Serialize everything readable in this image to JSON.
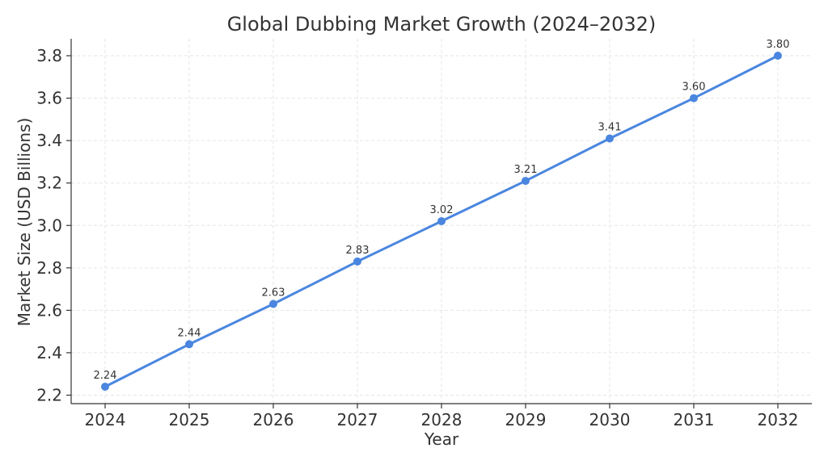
{
  "chart_data": {
    "type": "line",
    "title": "Global Dubbing Market Growth (2024–2032)",
    "xlabel": "Year",
    "ylabel": "Market Size (USD Billions)",
    "x": [
      "2024",
      "2025",
      "2026",
      "2027",
      "2028",
      "2029",
      "2030",
      "2031",
      "2032"
    ],
    "series": [
      {
        "values": [
          2.24,
          2.44,
          2.63,
          2.83,
          3.02,
          3.21,
          3.41,
          3.6,
          3.8
        ],
        "data_labels": [
          "2.24",
          "2.44",
          "2.63",
          "2.83",
          "3.02",
          "3.21",
          "3.41",
          "3.60",
          "3.80"
        ],
        "color": "#4a86e0",
        "marker": "circle"
      }
    ],
    "ylim": [
      2.16,
      3.88
    ],
    "yticks": [
      2.2,
      2.4,
      2.6,
      2.8,
      3.0,
      3.2,
      3.4,
      3.6,
      3.8
    ],
    "ytick_labels": [
      "2.2",
      "2.4",
      "2.6",
      "2.8",
      "3.0",
      "3.2",
      "3.4",
      "3.6",
      "3.8"
    ],
    "grid": true,
    "legend": "none"
  }
}
